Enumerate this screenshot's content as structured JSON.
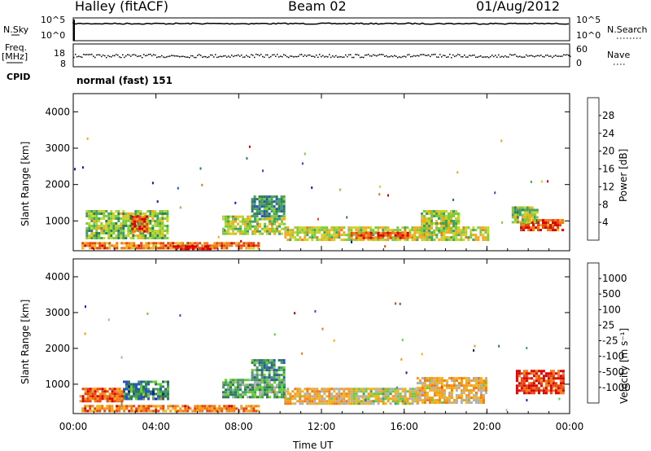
{
  "header": {
    "site": "Halley (fitACF)",
    "beam": "Beam 02",
    "date": "01/Aug/2012"
  },
  "top_panels": {
    "nsky_label": "N.Sky",
    "nsearch_label": "N.Search",
    "nsky_ticks": [
      "10^5",
      "10^0"
    ],
    "nsearch_ticks": [
      "10^5",
      "10^0"
    ],
    "freq_label_1": "Freq.",
    "freq_label_2": "[MHz]",
    "freq_ticks": [
      "18",
      "8"
    ],
    "nave_label": "Nave",
    "nave_ticks": [
      "60",
      "0"
    ],
    "cpid_label": "CPID",
    "cpid_value": "normal (fast) 151"
  },
  "chart_data": [
    {
      "type": "heatmap",
      "panel": "power",
      "xlabel": "",
      "ylabel": "Slant Range [km]",
      "x_ticks": [
        "00:00",
        "04:00",
        "08:00",
        "12:00",
        "16:00",
        "20:00",
        "00:00"
      ],
      "x_range_hours": [
        0,
        24
      ],
      "y_ticks": [
        1000,
        2000,
        3000,
        4000
      ],
      "ylim": [
        180,
        4500
      ],
      "colorbar": {
        "label": "Power [dB]",
        "ticks": [
          "28",
          "24",
          "20",
          "16",
          "12",
          "8",
          "4"
        ],
        "colors": [
          "#1010e0",
          "#2a55b8",
          "#2f7a5a",
          "#45a060",
          "#7acc3a",
          "#c8d22a",
          "#f5a91c",
          "#f07a14",
          "#e8440e",
          "#d90000"
        ]
      },
      "regions": [
        {
          "t0": 0.6,
          "t1": 4.6,
          "r0": 550,
          "r1": 1300,
          "level": 0.45
        },
        {
          "t0": 2.8,
          "t1": 3.6,
          "r0": 700,
          "r1": 1150,
          "level": 0.85
        },
        {
          "t0": 0.4,
          "t1": 9.0,
          "r0": 230,
          "r1": 420,
          "level": 0.75
        },
        {
          "t0": 4.8,
          "t1": 6.6,
          "r0": 200,
          "r1": 330,
          "level": 0.95
        },
        {
          "t0": 7.2,
          "t1": 10.2,
          "r0": 650,
          "r1": 1150,
          "level": 0.5
        },
        {
          "t0": 8.6,
          "t1": 10.2,
          "r0": 1150,
          "r1": 1700,
          "level": 0.3
        },
        {
          "t0": 10.2,
          "t1": 20.0,
          "r0": 450,
          "r1": 850,
          "level": 0.55
        },
        {
          "t0": 13.4,
          "t1": 16.2,
          "r0": 500,
          "r1": 700,
          "level": 0.8
        },
        {
          "t0": 16.8,
          "t1": 18.6,
          "r0": 700,
          "r1": 1300,
          "level": 0.5
        },
        {
          "t0": 21.6,
          "t1": 23.7,
          "r0": 750,
          "r1": 1050,
          "level": 0.85
        },
        {
          "t0": 21.2,
          "t1": 22.4,
          "r0": 950,
          "r1": 1400,
          "level": 0.45
        }
      ]
    },
    {
      "type": "heatmap",
      "panel": "velocity",
      "xlabel": "Time UT",
      "ylabel": "Slant Range [km]",
      "x_ticks": [
        "00:00",
        "04:00",
        "08:00",
        "12:00",
        "16:00",
        "20:00",
        "00:00"
      ],
      "x_range_hours": [
        0,
        24
      ],
      "y_ticks": [
        1000,
        2000,
        3000,
        4000
      ],
      "ylim": [
        180,
        4500
      ],
      "colorbar": {
        "label": "Velocity [m s⁻¹]",
        "ticks": [
          "1000",
          "500",
          "100",
          "25",
          "-25",
          "-100",
          "-500",
          "-1000"
        ],
        "colors": [
          "#1a1ab8",
          "#2a55b8",
          "#2f7a5a",
          "#45a060",
          "#6acc38",
          "#b0b0b0",
          "#f2b21c",
          "#f59a18",
          "#f07a14",
          "#e8440e",
          "#d90000"
        ]
      },
      "regions": [
        {
          "t0": 0.3,
          "t1": 2.4,
          "r0": 550,
          "r1": 900,
          "level": 0.8
        },
        {
          "t0": 2.4,
          "t1": 4.6,
          "r0": 600,
          "r1": 1100,
          "level": 0.25
        },
        {
          "t0": 0.4,
          "t1": 9.0,
          "r0": 230,
          "r1": 420,
          "level": 0.75
        },
        {
          "t0": 7.2,
          "t1": 10.2,
          "r0": 650,
          "r1": 1150,
          "level": 0.35
        },
        {
          "t0": 8.6,
          "t1": 10.2,
          "r0": 1150,
          "r1": 1700,
          "level": 0.3
        },
        {
          "t0": 10.2,
          "t1": 13.4,
          "r0": 450,
          "r1": 900,
          "level": 0.62
        },
        {
          "t0": 13.4,
          "t1": 16.6,
          "r0": 450,
          "r1": 900,
          "level": 0.52
        },
        {
          "t0": 16.6,
          "t1": 20.0,
          "r0": 500,
          "r1": 1200,
          "level": 0.62
        },
        {
          "t0": 21.4,
          "t1": 23.7,
          "r0": 750,
          "r1": 1400,
          "level": 0.9
        }
      ]
    }
  ]
}
